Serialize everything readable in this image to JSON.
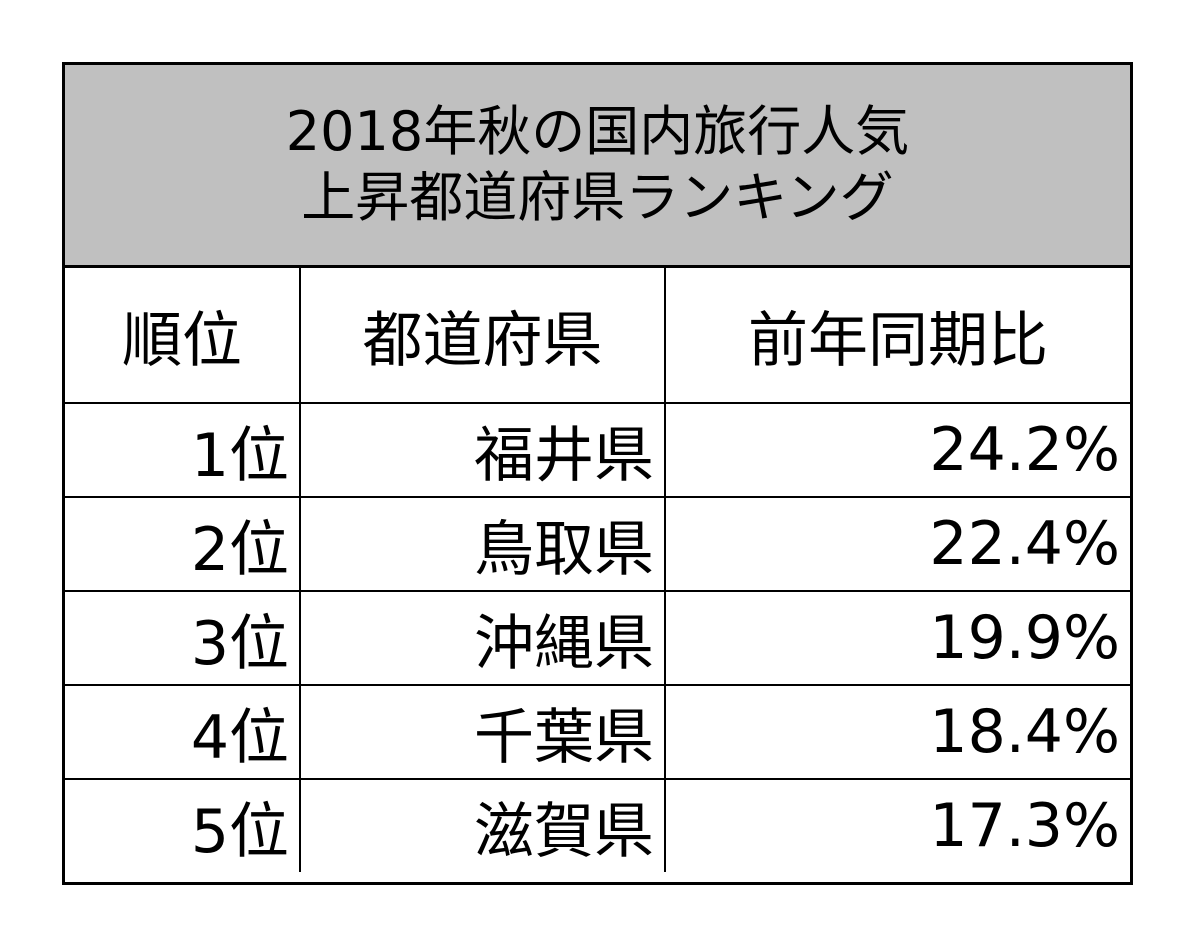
{
  "header": {
    "title_lines": [
      "2018年秋の国内旅行人気",
      "上昇都道府県ランキング"
    ]
  },
  "table": {
    "columns": [
      "順位",
      "都道府県",
      "前年同期比"
    ],
    "rows": [
      [
        "1位",
        "福井県",
        "24.2%"
      ],
      [
        "2位",
        "鳥取県",
        "22.4%"
      ],
      [
        "3位",
        "沖縄県",
        "19.9%"
      ],
      [
        "4位",
        "千葉県",
        "18.4%"
      ],
      [
        "5位",
        "滋賀県",
        "17.3%"
      ]
    ]
  }
}
